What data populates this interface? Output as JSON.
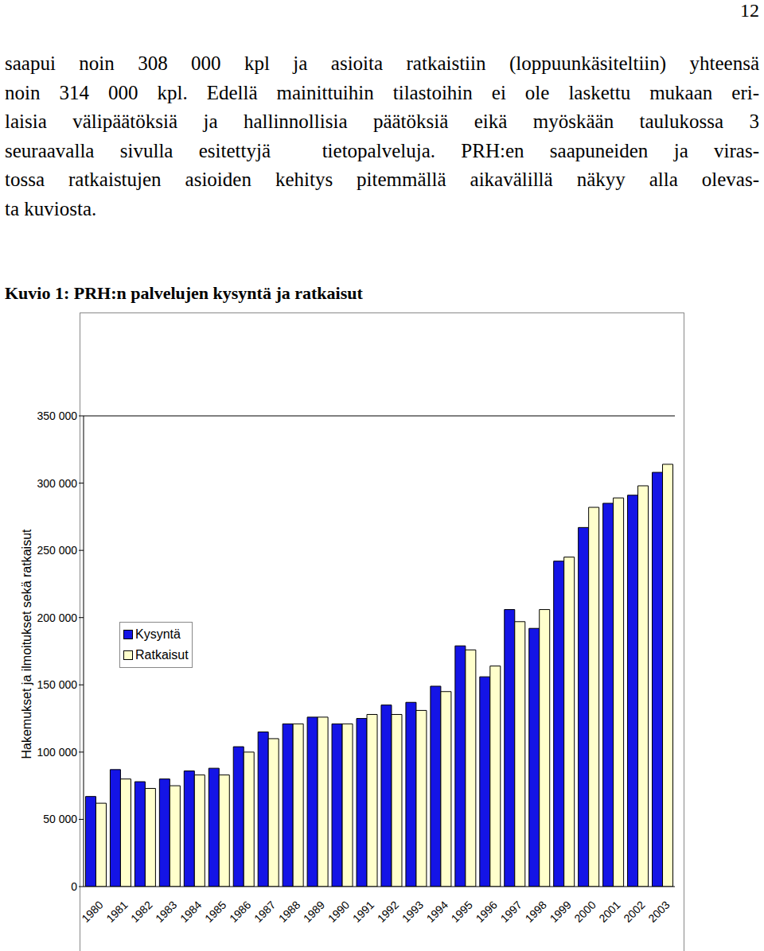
{
  "page_number": "12",
  "paragraph_lines": [
    "saapui noin 308 000 kpl ja asioita ratkaistiin (loppuunkäsiteltiin) yhteensä",
    "noin 314 000 kpl. Edellä mainittuihin tilastoihin ei ole laskettu mukaan eri-",
    "laisia välipäätöksiä ja hallinnollisia päätöksiä eikä myöskään taulukossa 3",
    "seuraavalla sivulla esitettyjä  tietopalveluja. PRH:en saapuneiden ja viras-",
    "tossa ratkaistujen asioiden kehitys pitemmällä aikavälillä näkyy alla olevas-",
    "ta kuviosta."
  ],
  "figure_caption": "Kuvio 1: PRH:n palvelujen kysyntä ja ratkaisut",
  "chart_data": {
    "type": "bar",
    "y_label": "Hakemukset ja ilmoitukset sekä ratkaisut",
    "categories": [
      "1980",
      "1981",
      "1982",
      "1983",
      "1984",
      "1985",
      "1986",
      "1987",
      "1988",
      "1989",
      "1990",
      "1991",
      "1992",
      "1993",
      "1994",
      "1995",
      "1996",
      "1997",
      "1998",
      "1999",
      "2000",
      "2001",
      "2002",
      "2003"
    ],
    "series": [
      {
        "name": "Kysyntä",
        "color": "#1414e6",
        "values": [
          67000,
          87000,
          78000,
          80000,
          86000,
          88000,
          104000,
          115000,
          121000,
          126000,
          121000,
          125000,
          135000,
          137000,
          149000,
          179000,
          156000,
          206000,
          192000,
          242000,
          267000,
          285000,
          291000,
          308000
        ]
      },
      {
        "name": "Ratkaisut",
        "color": "#ffffcc",
        "values": [
          62000,
          80000,
          73000,
          75000,
          83000,
          83000,
          100000,
          110000,
          121000,
          126000,
          121000,
          128000,
          128000,
          131000,
          145000,
          176000,
          164000,
          197000,
          206000,
          245000,
          282000,
          289000,
          298000,
          314000
        ]
      }
    ],
    "ylim": [
      0,
      350000
    ],
    "yticks": [
      0,
      {
        "value": 50000,
        "label": "50 000"
      },
      {
        "value": 100000,
        "label": "100 000"
      },
      {
        "value": 150000,
        "label": "150 000"
      },
      {
        "value": 200000,
        "label": "200 000"
      },
      {
        "value": 250000,
        "label": "250 000"
      },
      {
        "value": 300000,
        "label": "300 000"
      },
      {
        "value": 350000,
        "label": "350 000"
      }
    ],
    "grid": false,
    "legend": "left"
  }
}
